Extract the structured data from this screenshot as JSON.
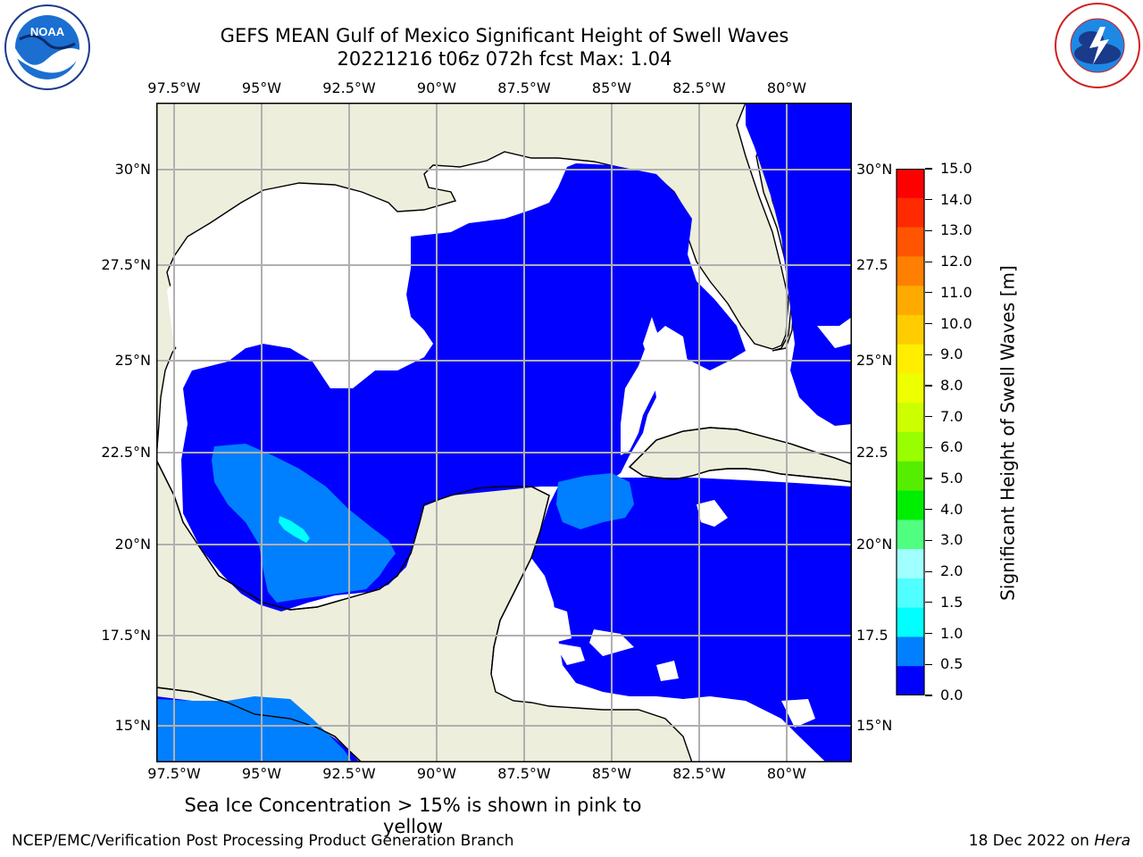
{
  "title": "GEFS MEAN Gulf of Mexico Significant Height of Swell Waves",
  "subtitle": "20221216 t06z 072h fcst   Max: 1.04",
  "logos": {
    "left": "NOAA",
    "right": "NATIONAL WEATHER SERVICE"
  },
  "map": {
    "lon_labels": [
      "97.5°W",
      "95°W",
      "92.5°W",
      "90°W",
      "87.5°W",
      "85°W",
      "82.5°W",
      "80°W"
    ],
    "lat_labels_left": [
      "30°N",
      "27.5°N",
      "25°N",
      "22.5°N",
      "20°N",
      "17.5°N",
      "15°N"
    ],
    "lat_labels_right": [
      "30°N",
      "27.5",
      "25°N",
      "22.5",
      "20°N",
      "17.5",
      "15°N"
    ],
    "colors": {
      "land": "#eeeedc",
      "swell_0_0.5": "#0000ff",
      "swell_0.5_1.0": "#0080ff",
      "swell_1.0_1.5": "#00ffff",
      "grid": "#b0b0b0"
    }
  },
  "colorbar": {
    "label": "Significant Height of Swell Waves [m]",
    "ticks": [
      "15.0",
      "14.0",
      "13.0",
      "12.0",
      "11.0",
      "10.0",
      "9.0",
      "8.0",
      "7.0",
      "6.0",
      "5.0",
      "4.0",
      "3.0",
      "2.0",
      "1.5",
      "1.0",
      "0.5",
      "0.0"
    ],
    "colors_top_to_bottom": [
      "#ff0000",
      "#ff2a00",
      "#ff5500",
      "#ff8000",
      "#ffaa00",
      "#ffcc00",
      "#ffee00",
      "#eeff00",
      "#ccff00",
      "#99ff00",
      "#55ee00",
      "#00ee00",
      "#50ff80",
      "#a0ffff",
      "#50ffff",
      "#00ffff",
      "#0080ff",
      "#0000ff"
    ]
  },
  "footer": {
    "note": "Sea Ice Concentration > 15% is shown in pink to yellow",
    "credit": "NCEP/EMC/Verification Post Processing Product Generation Branch",
    "date": "18 Dec 2022 on",
    "host": "Hera"
  }
}
